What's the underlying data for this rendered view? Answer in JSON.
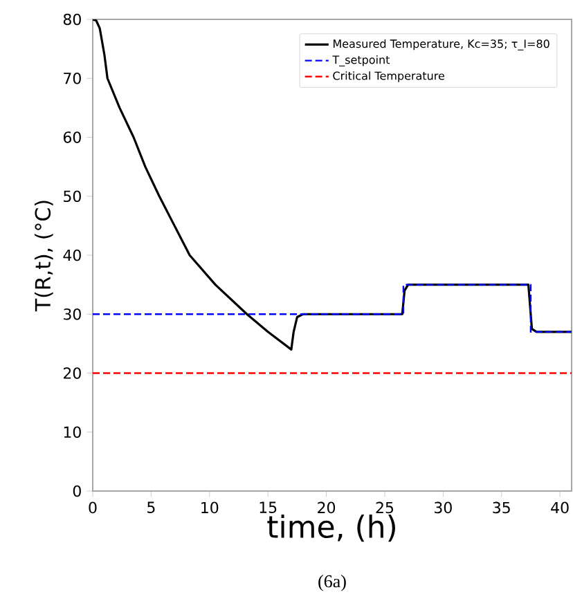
{
  "chart_data": {
    "type": "line",
    "xlabel": "time, (h)",
    "ylabel": "T(R,t), (°C)",
    "xlim": [
      0,
      41
    ],
    "ylim": [
      0,
      80
    ],
    "xticks": [
      0,
      5,
      10,
      15,
      20,
      25,
      30,
      35,
      40
    ],
    "yticks": [
      0,
      10,
      20,
      30,
      40,
      50,
      60,
      70,
      80
    ],
    "grid": false,
    "legend": "top right",
    "series": [
      {
        "name": "Measured Temperature, Kc=35; τ_I=80",
        "color": "#000000",
        "line_style": "solid",
        "x": [
          0,
          0.3,
          0.6,
          1.0,
          1.26,
          2.3,
          3.5,
          4.5,
          5.7,
          7.0,
          8.3,
          10.5,
          13.2,
          15.0,
          17.0,
          17.2,
          17.5,
          18.0,
          26.5,
          26.7,
          27.0,
          37.3,
          37.6,
          38.0,
          41.0
        ],
        "values": [
          80,
          79.8,
          78.5,
          74,
          70,
          65,
          60,
          55,
          50,
          45,
          40,
          35,
          30,
          27,
          24,
          27,
          29.5,
          30,
          30,
          34,
          35,
          35,
          27.5,
          27,
          27
        ]
      },
      {
        "name": "T_setpoint",
        "color": "#0000ff",
        "line_style": "dashed",
        "x": [
          0,
          26.6,
          26.6,
          37.5,
          37.5,
          41
        ],
        "values": [
          30,
          30,
          35,
          35,
          27,
          27
        ]
      },
      {
        "name": "Critical Temperature",
        "color": "#ff0000",
        "line_style": "dashed",
        "x": [
          0,
          41
        ],
        "values": [
          20,
          20
        ]
      }
    ],
    "annotations": [
      "(6a)"
    ]
  }
}
